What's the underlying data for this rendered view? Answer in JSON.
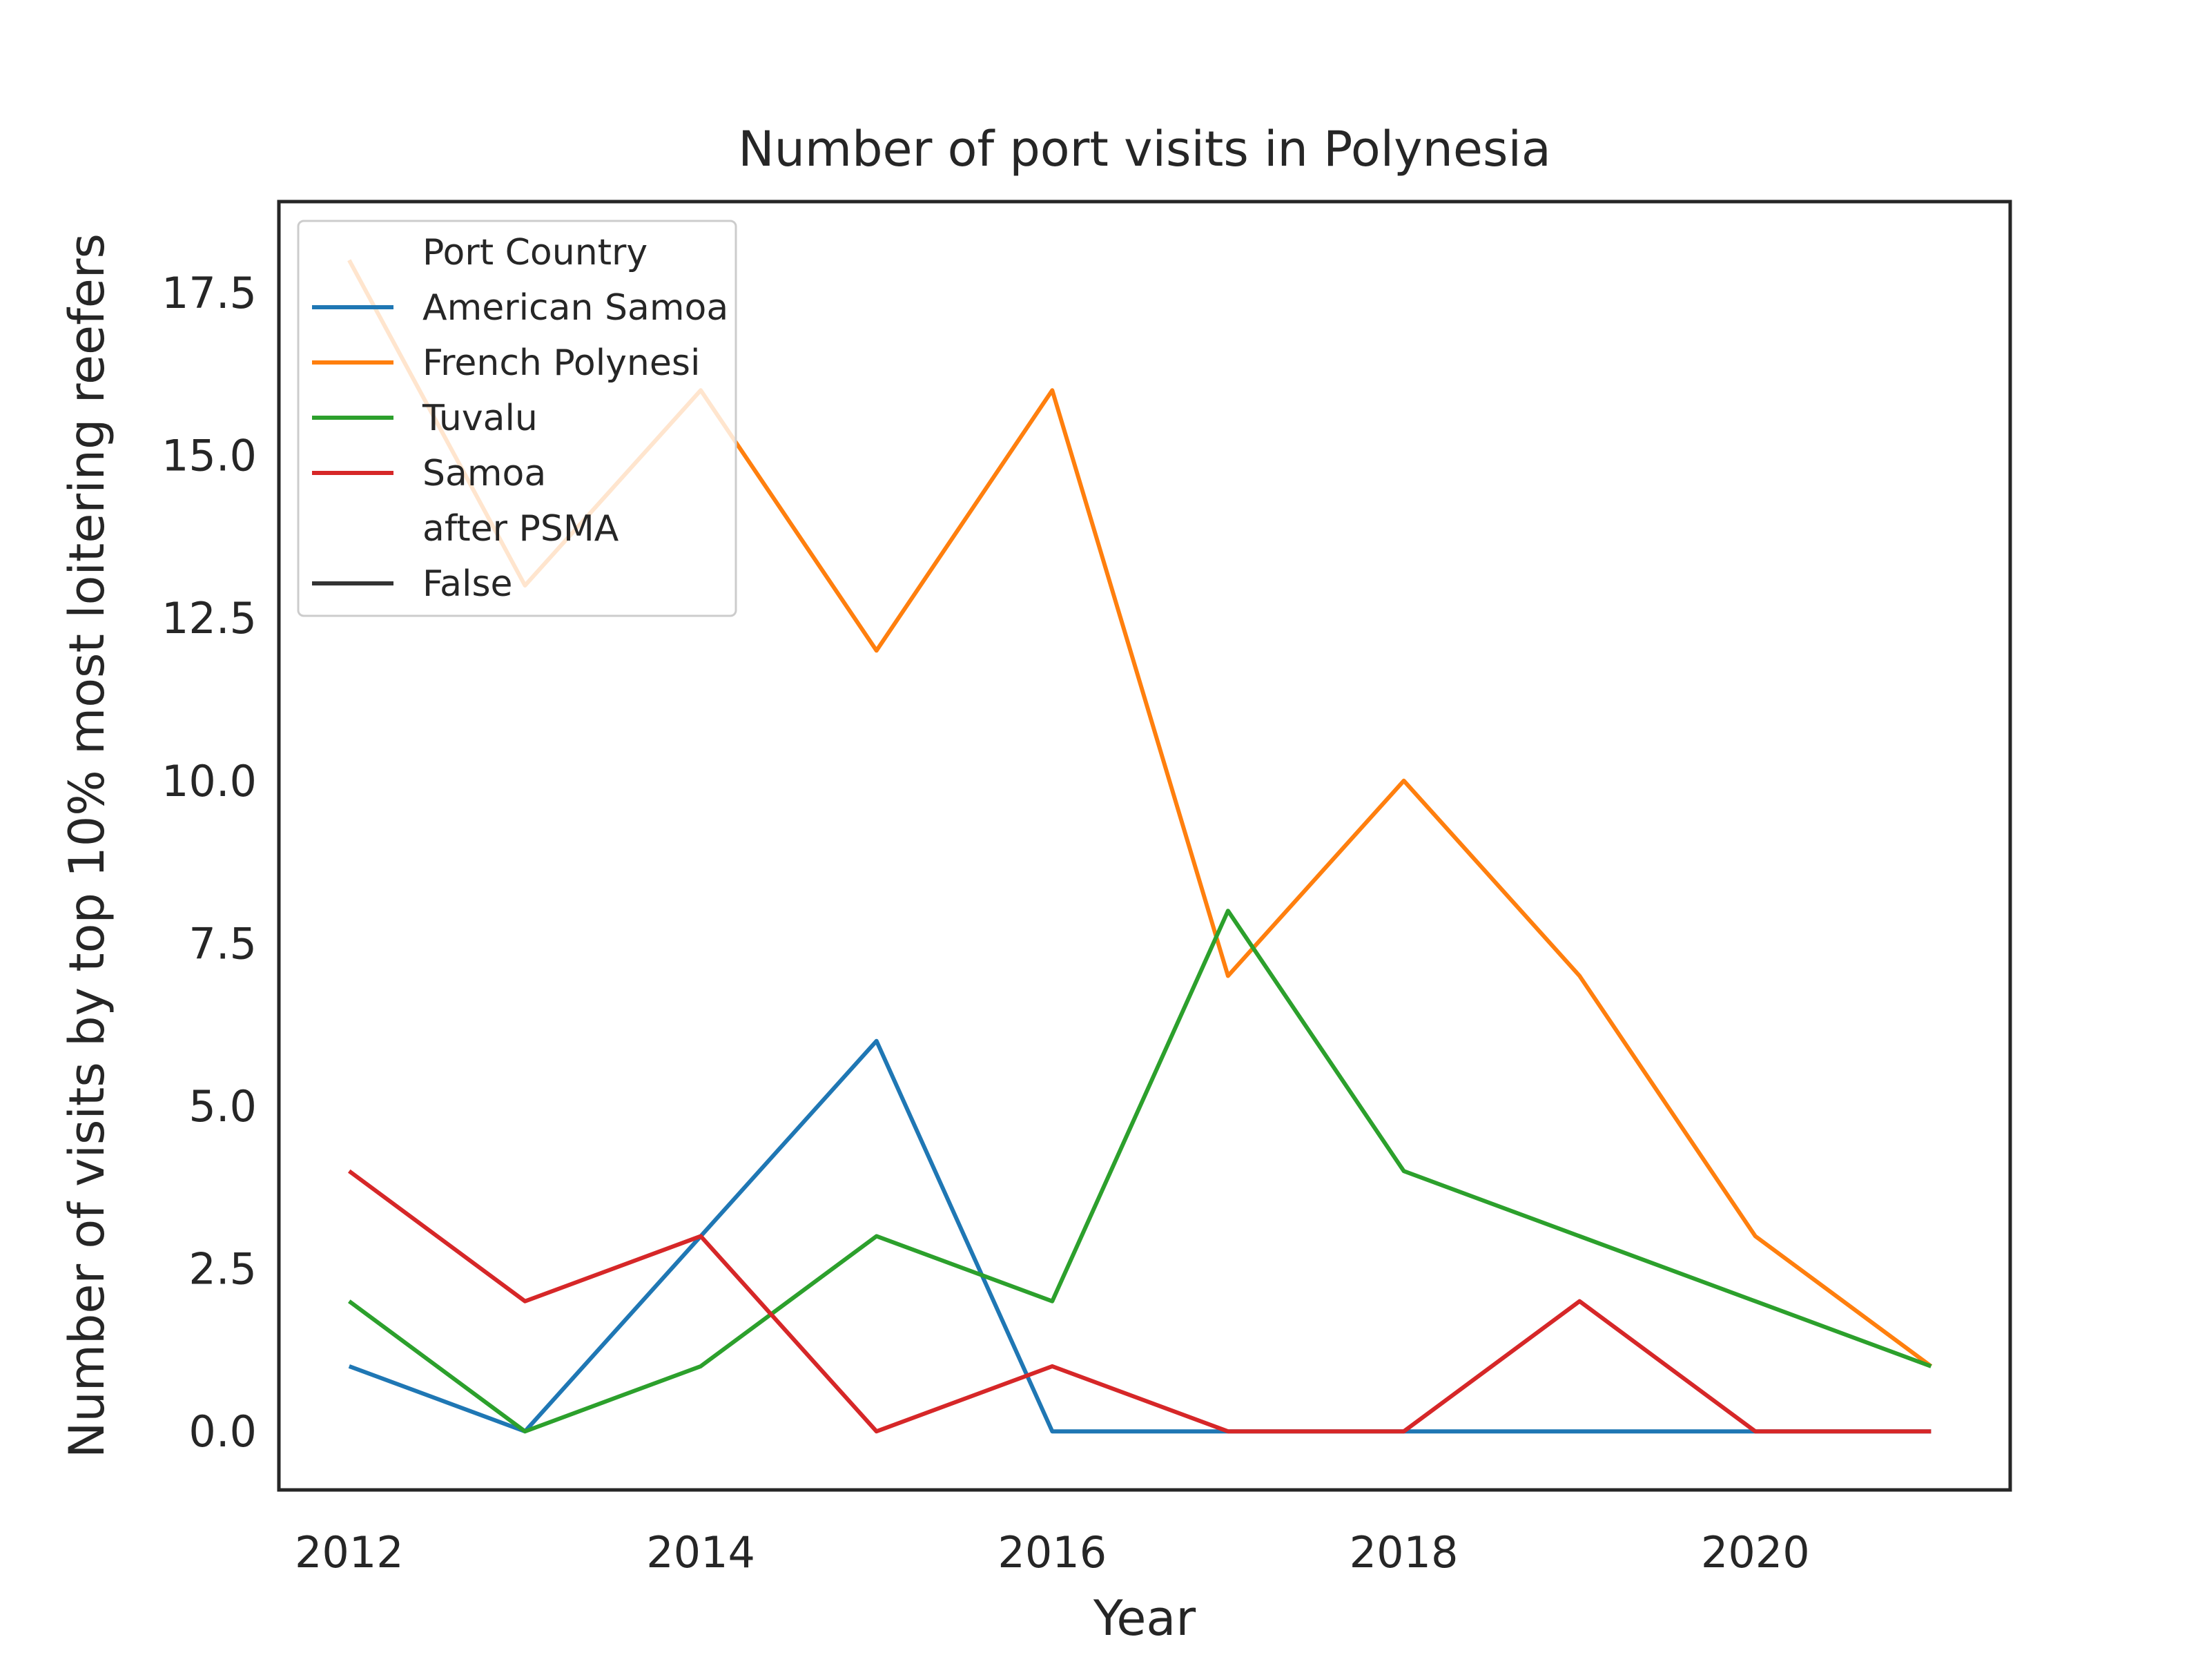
{
  "chart_data": {
    "type": "line",
    "title": "Number of port visits in Polynesia",
    "xlabel": "Year",
    "ylabel": "Number of visits by top 10% most loitering reefers",
    "xlim": [
      2011.6,
      2021.45
    ],
    "ylim": [
      -0.9,
      18.9
    ],
    "xticks": [
      2012,
      2014,
      2016,
      2018,
      2020
    ],
    "yticks": [
      0.0,
      2.5,
      5.0,
      7.5,
      10.0,
      12.5,
      15.0,
      17.5
    ],
    "xtick_labels": [
      "2012",
      "2014",
      "2016",
      "2018",
      "2020"
    ],
    "ytick_labels": [
      "0.0",
      "2.5",
      "5.0",
      "7.5",
      "10.0",
      "12.5",
      "15.0",
      "17.5"
    ],
    "grid": false,
    "legend_position": "top-left",
    "x": [
      2012,
      2013,
      2014,
      2015,
      2016,
      2017,
      2018,
      2019,
      2020,
      2021
    ],
    "series": [
      {
        "name": "American Samoa",
        "color": "#1f77b4",
        "values": [
          1,
          0,
          3,
          6,
          0,
          0,
          0,
          0,
          0,
          0
        ]
      },
      {
        "name": "French Polynesi",
        "color": "#ff7f0e",
        "values": [
          18,
          13,
          16,
          12,
          16,
          7,
          10,
          7,
          3,
          1
        ]
      },
      {
        "name": "Tuvalu",
        "color": "#2ca02c",
        "values": [
          2,
          0,
          1,
          3,
          2,
          8,
          4,
          3,
          2,
          1
        ]
      },
      {
        "name": "Samoa",
        "color": "#d62728",
        "values": [
          4,
          2,
          3,
          0,
          1,
          0,
          0,
          2,
          0,
          0
        ]
      }
    ],
    "legend": {
      "hue_title": "Port Country",
      "style_title": "after PSMA",
      "style_entries": [
        {
          "name": "False",
          "color": "#333333"
        }
      ]
    }
  }
}
